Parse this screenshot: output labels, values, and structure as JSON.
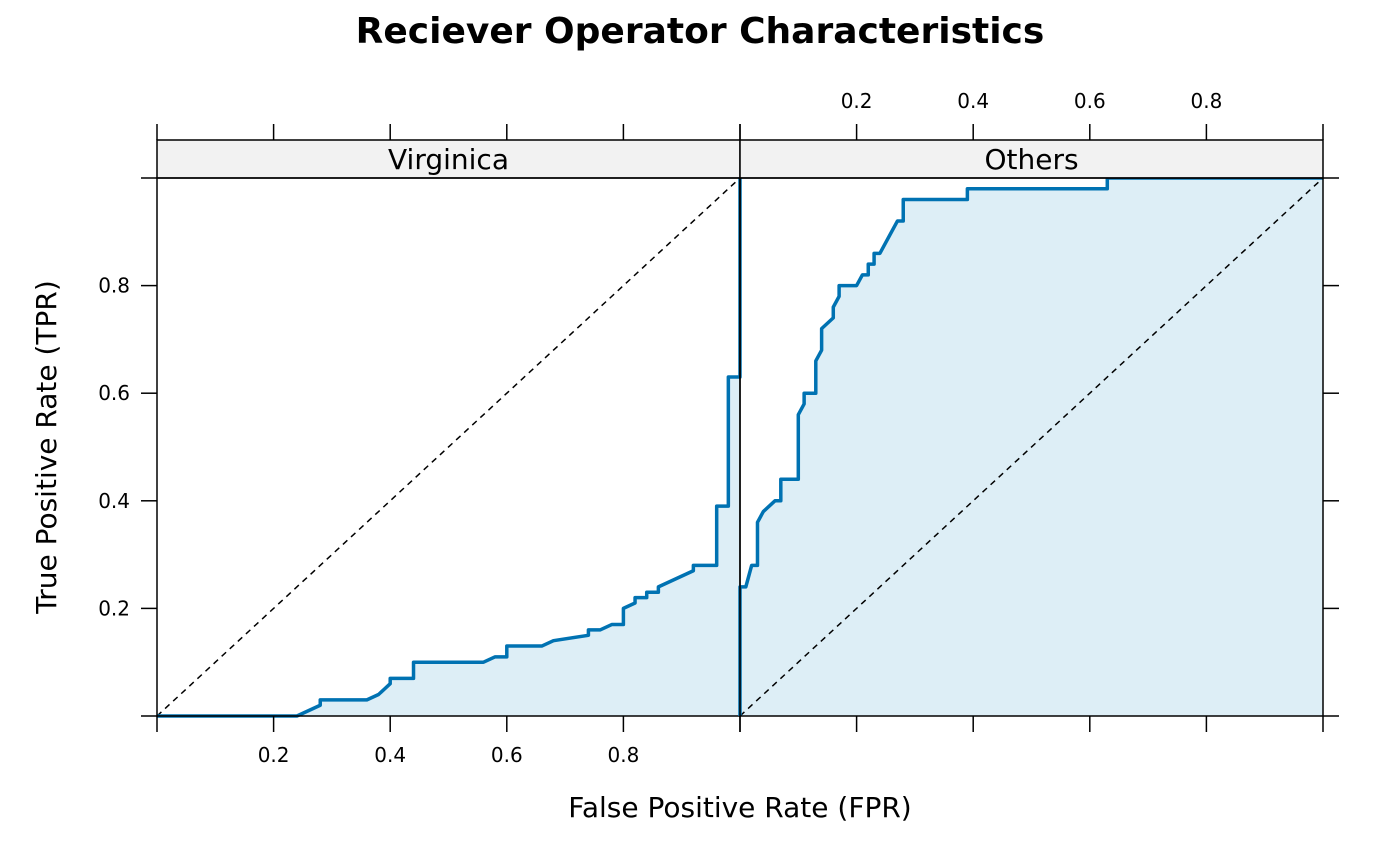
{
  "chart_data": {
    "type": "area",
    "title": "Reciever Operator Characteristics",
    "xlabel": "False Positive Rate (FPR)",
    "ylabel": "True Positive Rate (TPR)",
    "xlim": [
      0,
      1
    ],
    "ylim": [
      0,
      1
    ],
    "x_ticks": [
      0.2,
      0.4,
      0.6,
      0.8
    ],
    "y_ticks": [
      0.2,
      0.4,
      0.6,
      0.8
    ],
    "x_tick_labels": [
      "0.2",
      "0.4",
      "0.6",
      "0.8"
    ],
    "y_tick_labels": [
      "0.2",
      "0.4",
      "0.6",
      "0.8"
    ],
    "grid": false,
    "line_color": "#0072B2",
    "fill_color": "#DDEEF6",
    "strip_color": "#F2F2F2",
    "diagonal_reference": true,
    "panels": [
      {
        "name": "Virginica",
        "x": [
          0.0,
          0.24,
          0.28,
          0.28,
          0.36,
          0.38,
          0.4,
          0.4,
          0.44,
          0.44,
          0.56,
          0.58,
          0.6,
          0.6,
          0.66,
          0.68,
          0.74,
          0.74,
          0.76,
          0.78,
          0.8,
          0.8,
          0.82,
          0.82,
          0.84,
          0.84,
          0.86,
          0.86,
          0.92,
          0.92,
          0.96,
          0.96,
          0.98,
          0.98,
          1.0,
          1.0
        ],
        "y": [
          0.0,
          0.0,
          0.02,
          0.03,
          0.03,
          0.04,
          0.06,
          0.07,
          0.07,
          0.1,
          0.1,
          0.11,
          0.11,
          0.13,
          0.13,
          0.14,
          0.15,
          0.16,
          0.16,
          0.17,
          0.17,
          0.2,
          0.21,
          0.22,
          0.22,
          0.23,
          0.23,
          0.24,
          0.27,
          0.28,
          0.28,
          0.39,
          0.39,
          0.63,
          0.63,
          1.0
        ]
      },
      {
        "name": "Others",
        "x": [
          0.0,
          0.0,
          0.01,
          0.02,
          0.03,
          0.03,
          0.04,
          0.05,
          0.06,
          0.07,
          0.07,
          0.1,
          0.1,
          0.11,
          0.11,
          0.13,
          0.13,
          0.14,
          0.14,
          0.16,
          0.16,
          0.17,
          0.17,
          0.2,
          0.21,
          0.22,
          0.22,
          0.23,
          0.23,
          0.24,
          0.27,
          0.28,
          0.28,
          0.39,
          0.39,
          0.63,
          0.63,
          1.0
        ],
        "y": [
          0.0,
          0.24,
          0.24,
          0.28,
          0.28,
          0.36,
          0.38,
          0.39,
          0.4,
          0.4,
          0.44,
          0.44,
          0.56,
          0.58,
          0.6,
          0.6,
          0.66,
          0.68,
          0.72,
          0.74,
          0.76,
          0.78,
          0.8,
          0.8,
          0.82,
          0.82,
          0.84,
          0.84,
          0.86,
          0.86,
          0.92,
          0.92,
          0.96,
          0.96,
          0.98,
          0.98,
          1.0,
          1.0
        ]
      }
    ]
  }
}
